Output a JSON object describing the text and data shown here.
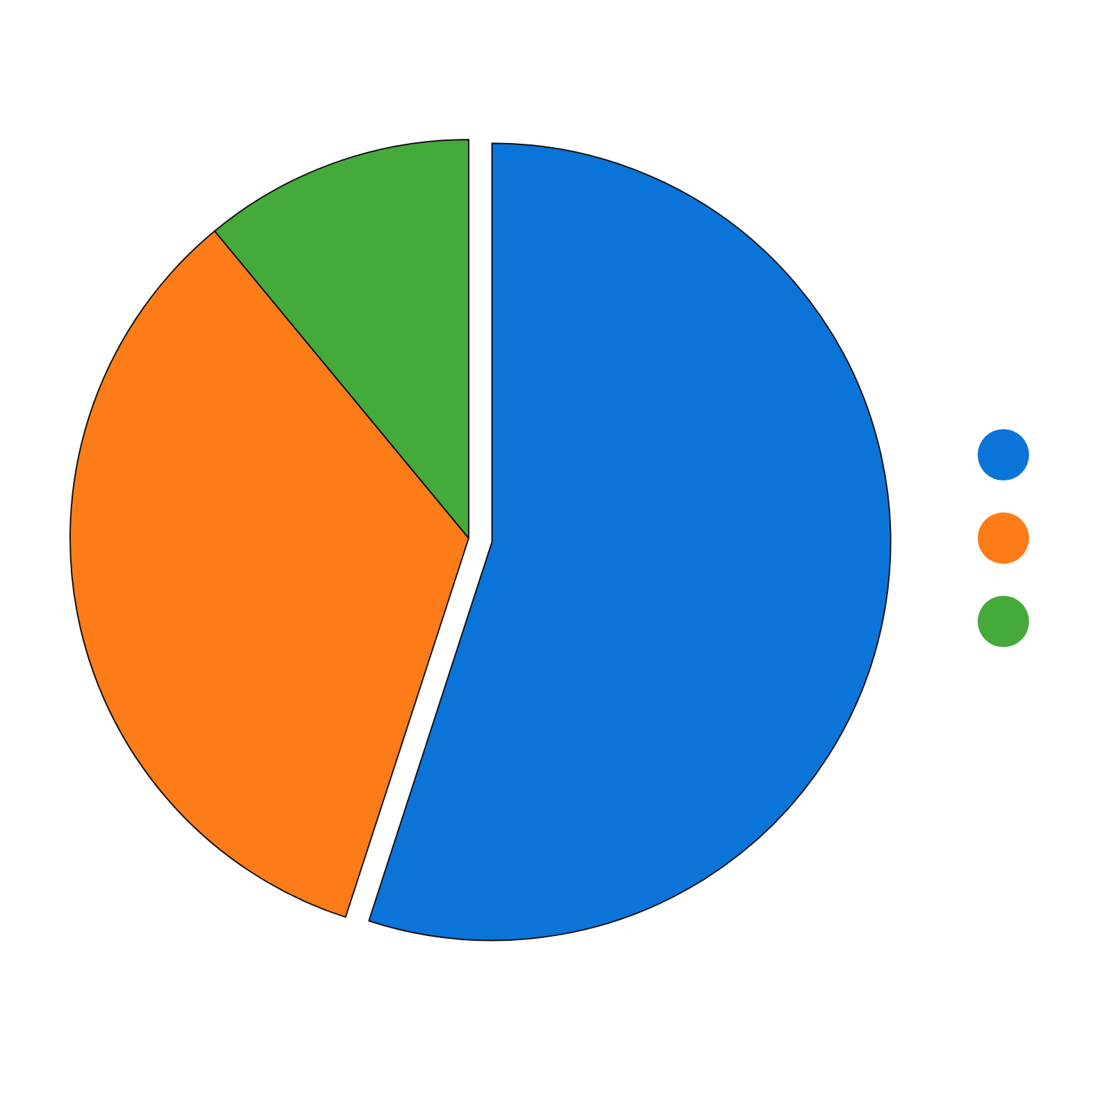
{
  "chart_data": {
    "type": "pie",
    "categories": [
      null,
      null,
      null
    ],
    "values": [
      55,
      34,
      11
    ],
    "colors": [
      "#0b74d9",
      "#fd7c17",
      "#44ab3b"
    ]
  }
}
